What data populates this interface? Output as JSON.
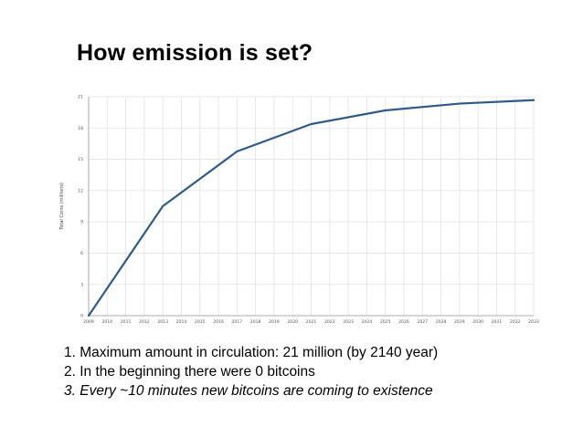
{
  "slide": {
    "title": "How emission is set?"
  },
  "chart_data": {
    "type": "line",
    "title": "",
    "xlabel": "",
    "ylabel": "Total Coins (millions)",
    "ylim": [
      0,
      21
    ],
    "xlim": [
      2009,
      2033
    ],
    "yticks": [
      0,
      3,
      6,
      9,
      12,
      15,
      18,
      21
    ],
    "xticks": [
      2009,
      2010,
      2011,
      2012,
      2013,
      2014,
      2015,
      2016,
      2017,
      2018,
      2019,
      2020,
      2021,
      2022,
      2023,
      2024,
      2025,
      2026,
      2027,
      2028,
      2029,
      2030,
      2031,
      2032,
      2033
    ],
    "grid": true,
    "legend": "none",
    "series": [
      {
        "color": "#2e5b8a",
        "x": [
          2009,
          2013,
          2017,
          2021,
          2025,
          2029,
          2033
        ],
        "y": [
          0,
          10.5,
          15.75,
          18.375,
          19.6875,
          20.34,
          20.67
        ]
      }
    ]
  },
  "notes": [
    "1. Maximum amount in circulation: 21 million (by 2140 year)",
    "2. In the beginning there were 0 bitcoins",
    "3. Every ~10 minutes new bitcoins are coming to existence"
  ]
}
